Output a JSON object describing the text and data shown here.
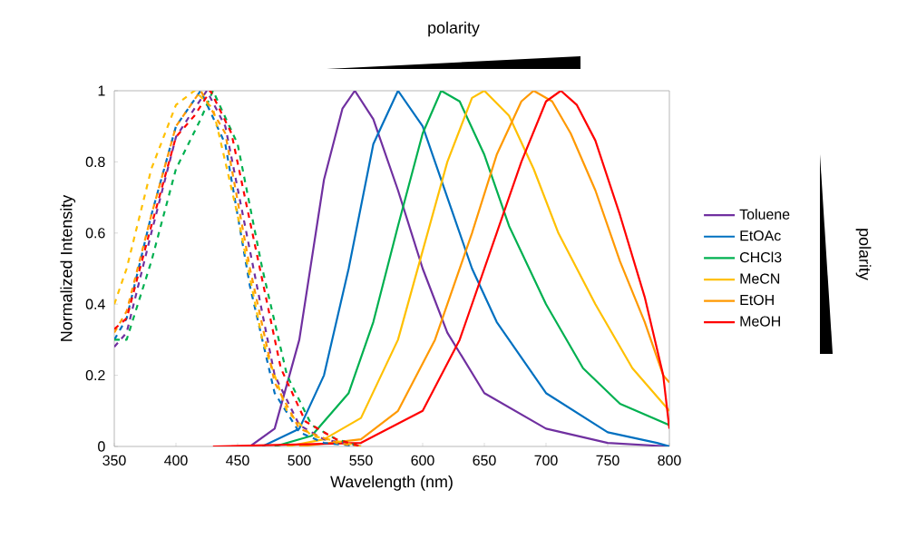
{
  "chart_data": {
    "type": "line",
    "xlabel": "Wavelength (nm)",
    "ylabel": "Normalized Intensity",
    "xlim": [
      350,
      800
    ],
    "ylim": [
      0,
      1
    ],
    "xticks": [
      350,
      400,
      450,
      500,
      550,
      600,
      650,
      700,
      750,
      800
    ],
    "yticks": [
      0,
      0.2,
      0.4,
      0.6,
      0.8,
      1
    ],
    "legend": "right",
    "grid": false,
    "annotations": [
      "polarity",
      "polarity"
    ],
    "series": [
      {
        "name": "Toluene",
        "color": "#7030a0",
        "line_style": "solid",
        "x": [
          460,
          480,
          500,
          520,
          535,
          545,
          560,
          580,
          600,
          620,
          650,
          700,
          750,
          800
        ],
        "values": [
          0,
          0.05,
          0.3,
          0.75,
          0.95,
          1,
          0.92,
          0.72,
          0.5,
          0.32,
          0.15,
          0.05,
          0.01,
          0
        ]
      },
      {
        "name": "EtOAc",
        "color": "#0070c0",
        "line_style": "solid",
        "x": [
          470,
          500,
          520,
          540,
          560,
          580,
          600,
          620,
          640,
          660,
          700,
          750,
          790,
          800
        ],
        "values": [
          0,
          0.05,
          0.2,
          0.5,
          0.85,
          1,
          0.9,
          0.7,
          0.5,
          0.35,
          0.15,
          0.04,
          0.01,
          0
        ]
      },
      {
        "name": "CHCl3",
        "color": "#00b050",
        "line_style": "solid",
        "x": [
          480,
          510,
          540,
          560,
          580,
          600,
          615,
          630,
          650,
          670,
          700,
          730,
          760,
          800
        ],
        "values": [
          0,
          0.03,
          0.15,
          0.35,
          0.62,
          0.88,
          1,
          0.97,
          0.82,
          0.62,
          0.4,
          0.22,
          0.12,
          0.06
        ]
      },
      {
        "name": "MeCN",
        "color": "#ffc000",
        "line_style": "solid",
        "x": [
          490,
          520,
          550,
          580,
          600,
          620,
          640,
          650,
          670,
          690,
          710,
          740,
          770,
          800
        ],
        "values": [
          0,
          0.02,
          0.08,
          0.3,
          0.55,
          0.8,
          0.98,
          1,
          0.93,
          0.78,
          0.6,
          0.4,
          0.22,
          0.1
        ]
      },
      {
        "name": "EtOH",
        "color": "#ff9900",
        "line_style": "solid",
        "x": [
          500,
          550,
          580,
          610,
          640,
          660,
          680,
          690,
          705,
          720,
          740,
          760,
          780,
          795,
          800
        ],
        "values": [
          0,
          0.02,
          0.1,
          0.3,
          0.6,
          0.82,
          0.97,
          1,
          0.97,
          0.88,
          0.72,
          0.52,
          0.35,
          0.2,
          0.18
        ]
      },
      {
        "name": "MeOH",
        "color": "#ff0000",
        "line_style": "solid",
        "x": [
          430,
          550,
          600,
          630,
          660,
          680,
          700,
          712,
          725,
          740,
          760,
          780,
          795,
          800
        ],
        "values": [
          0,
          0.01,
          0.1,
          0.3,
          0.6,
          0.8,
          0.97,
          1,
          0.96,
          0.86,
          0.65,
          0.42,
          0.2,
          0.05
        ]
      },
      {
        "color": "#7030a0",
        "line_style": "dashed",
        "x": [
          350,
          360,
          380,
          400,
          415,
          425,
          440,
          460,
          480,
          500,
          520,
          550
        ],
        "values": [
          0.28,
          0.32,
          0.6,
          0.87,
          0.95,
          1,
          0.9,
          0.55,
          0.2,
          0.06,
          0.02,
          0
        ]
      },
      {
        "color": "#0070c0",
        "line_style": "dashed",
        "x": [
          350,
          360,
          380,
          400,
          420,
          440,
          460,
          480,
          500,
          520,
          550
        ],
        "values": [
          0.3,
          0.36,
          0.65,
          0.9,
          1,
          0.85,
          0.45,
          0.15,
          0.04,
          0.01,
          0
        ]
      },
      {
        "color": "#00b050",
        "line_style": "dashed",
        "x": [
          350,
          360,
          380,
          400,
          420,
          430,
          450,
          470,
          490,
          510,
          530,
          550
        ],
        "values": [
          0.3,
          0.3,
          0.52,
          0.78,
          0.92,
          1,
          0.85,
          0.5,
          0.2,
          0.06,
          0.02,
          0
        ]
      },
      {
        "color": "#ffc000",
        "line_style": "dashed",
        "x": [
          350,
          360,
          380,
          400,
          415,
          430,
          450,
          470,
          490,
          510,
          550
        ],
        "values": [
          0.4,
          0.5,
          0.78,
          0.96,
          1,
          0.95,
          0.65,
          0.3,
          0.1,
          0.03,
          0
        ]
      },
      {
        "color": "#ff9900",
        "line_style": "dashed",
        "x": [
          350,
          360,
          380,
          400,
          420,
          440,
          460,
          480,
          500,
          530,
          550
        ],
        "values": [
          0.32,
          0.38,
          0.65,
          0.9,
          1,
          0.88,
          0.5,
          0.18,
          0.05,
          0.01,
          0
        ]
      },
      {
        "color": "#ff0000",
        "line_style": "dashed",
        "x": [
          350,
          360,
          380,
          400,
          415,
          428,
          445,
          465,
          485,
          505,
          530,
          550
        ],
        "values": [
          0.33,
          0.36,
          0.62,
          0.87,
          0.93,
          1,
          0.88,
          0.55,
          0.22,
          0.07,
          0.02,
          0
        ]
      }
    ]
  }
}
